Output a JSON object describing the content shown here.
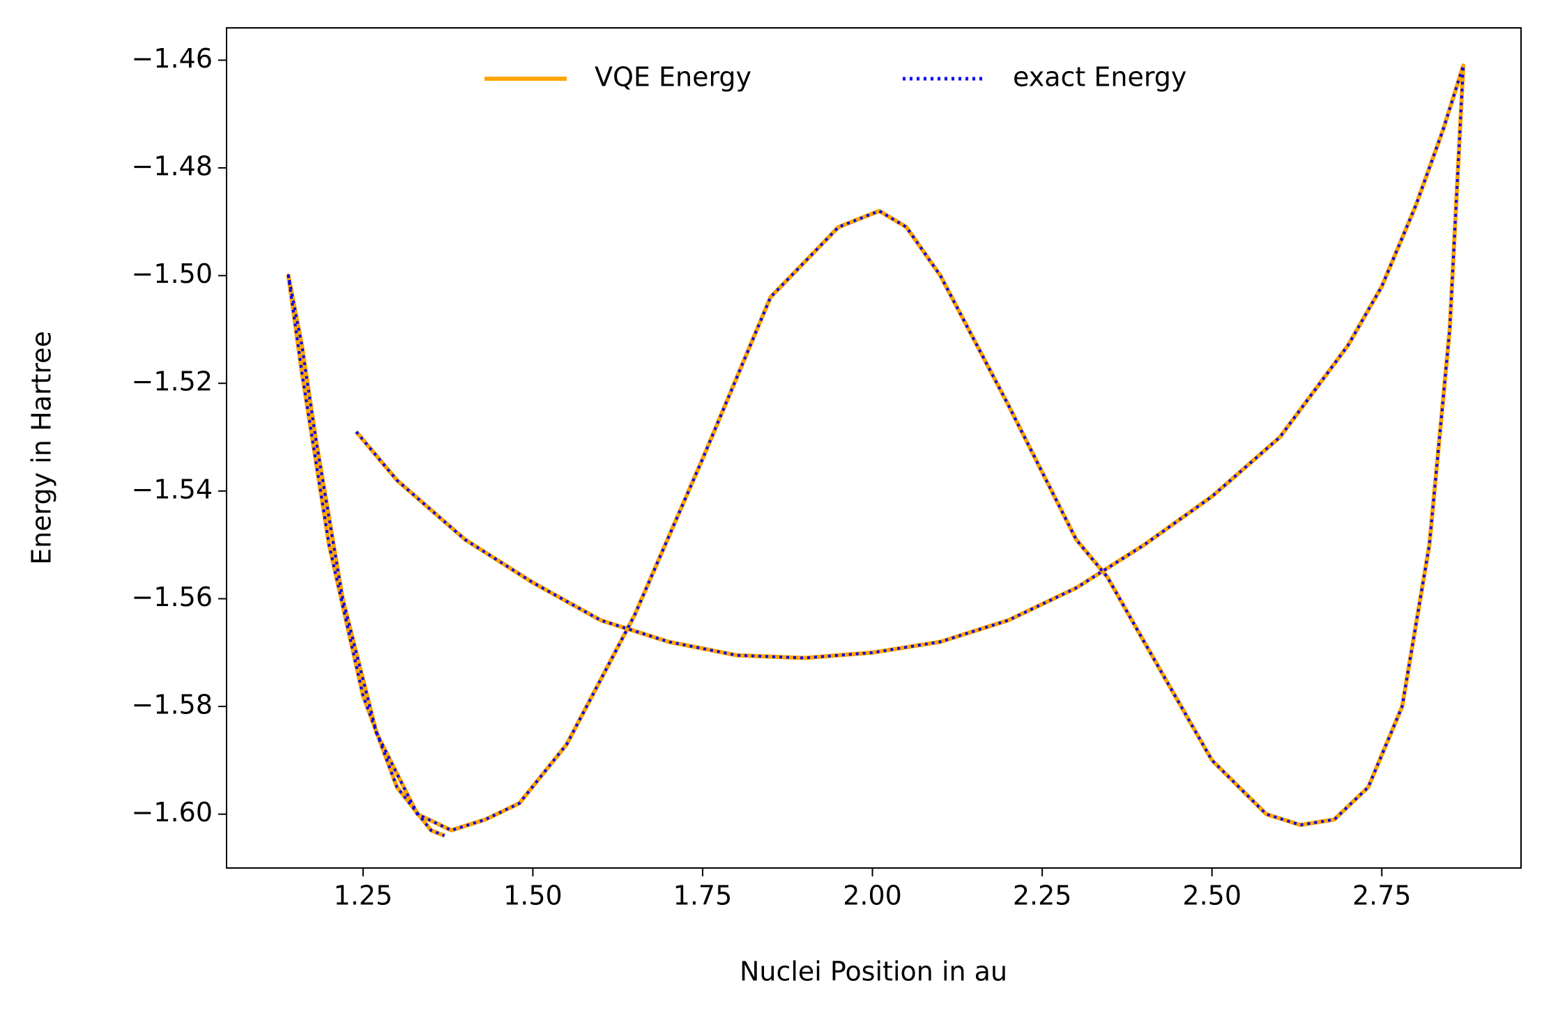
{
  "chart_data": {
    "type": "line",
    "xlabel": "Nuclei Position in au",
    "ylabel": "Energy in Hartree",
    "x": [
      1.24,
      1.3,
      1.4,
      1.5,
      1.6,
      1.7,
      1.8,
      1.9,
      2.0,
      2.1,
      2.2,
      2.3,
      2.4,
      2.5,
      2.6,
      2.7,
      2.75,
      2.8,
      2.84,
      2.87,
      2.85,
      2.82,
      2.78,
      2.73,
      2.68,
      2.63,
      2.58,
      2.5,
      2.4,
      2.346,
      2.3,
      2.2,
      2.1,
      2.05,
      2.01,
      1.95,
      1.85,
      1.75,
      1.65,
      1.55,
      1.48,
      1.43,
      1.38,
      1.33,
      1.27,
      1.22,
      1.18,
      1.16,
      1.14,
      1.16,
      1.2,
      1.25,
      1.3,
      1.35,
      1.37
    ],
    "series": [
      {
        "name": "VQE Energy",
        "color": "#ffa500",
        "style": "solid",
        "values": [
          -1.529,
          -1.538,
          -1.549,
          -1.557,
          -1.564,
          -1.568,
          -1.5705,
          -1.571,
          -1.57,
          -1.568,
          -1.564,
          -1.558,
          -1.55,
          -1.541,
          -1.53,
          -1.513,
          -1.502,
          -1.487,
          -1.473,
          -1.461,
          -1.51,
          -1.55,
          -1.58,
          -1.595,
          -1.601,
          -1.602,
          -1.6,
          -1.59,
          -1.568,
          -1.556,
          -1.549,
          -1.524,
          -1.5,
          -1.491,
          -1.488,
          -1.491,
          -1.504,
          -1.534,
          -1.563,
          -1.587,
          -1.598,
          -1.601,
          -1.603,
          -1.6,
          -1.585,
          -1.56,
          -1.53,
          -1.513,
          -1.5,
          -1.518,
          -1.55,
          -1.578,
          -1.595,
          -1.603,
          -1.604
        ]
      },
      {
        "name": "exact Energy",
        "color": "#0000ff",
        "style": "dotted",
        "values": [
          -1.529,
          -1.538,
          -1.549,
          -1.557,
          -1.564,
          -1.568,
          -1.5705,
          -1.571,
          -1.57,
          -1.568,
          -1.564,
          -1.558,
          -1.55,
          -1.541,
          -1.53,
          -1.513,
          -1.502,
          -1.487,
          -1.473,
          -1.461,
          -1.51,
          -1.55,
          -1.58,
          -1.595,
          -1.601,
          -1.602,
          -1.6,
          -1.59,
          -1.568,
          -1.556,
          -1.549,
          -1.524,
          -1.5,
          -1.491,
          -1.488,
          -1.491,
          -1.504,
          -1.534,
          -1.563,
          -1.587,
          -1.598,
          -1.601,
          -1.603,
          -1.6,
          -1.585,
          -1.56,
          -1.53,
          -1.513,
          -1.5,
          -1.518,
          -1.55,
          -1.578,
          -1.595,
          -1.603,
          -1.604
        ]
      }
    ],
    "xlim": [
      1.049,
      2.955
    ],
    "ylim": [
      -1.61,
      -1.454
    ],
    "xticks": [
      1.25,
      {
        "value": 1.5,
        "label": "1.50"
      },
      1.75,
      {
        "value": 2.0,
        "label": "2.00"
      },
      2.25,
      {
        "value": 2.5,
        "label": "2.50"
      },
      2.75
    ],
    "yticks": [
      {
        "value": -1.46,
        "label": "−1.46"
      },
      {
        "value": -1.48,
        "label": "−1.48"
      },
      {
        "value": -1.5,
        "label": "−1.50"
      },
      {
        "value": -1.52,
        "label": "−1.52"
      },
      {
        "value": -1.54,
        "label": "−1.54"
      },
      {
        "value": -1.56,
        "label": "−1.56"
      },
      {
        "value": -1.58,
        "label": "−1.58"
      },
      {
        "value": -1.6,
        "label": "−1.60"
      }
    ],
    "grid": false,
    "legend": "upper center"
  }
}
